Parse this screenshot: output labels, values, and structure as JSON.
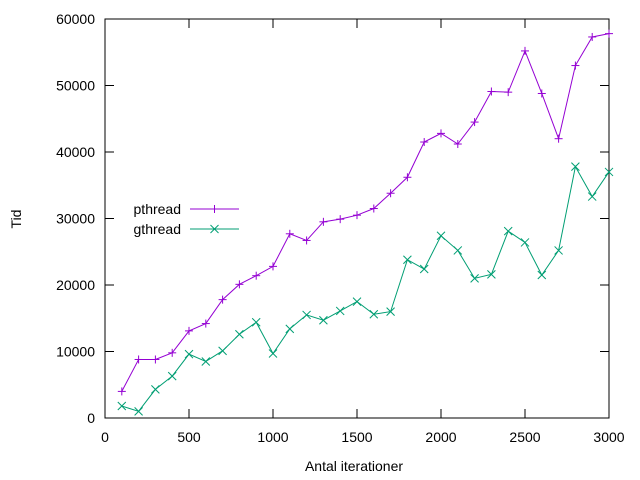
{
  "chart_data": {
    "type": "line",
    "title": "",
    "xlabel": "Antal iterationer",
    "ylabel": "Tid",
    "xlim": [
      0,
      3000
    ],
    "ylim": [
      0,
      60000
    ],
    "xticks": [
      0,
      500,
      1000,
      1500,
      2000,
      2500,
      3000
    ],
    "yticks": [
      0,
      10000,
      20000,
      30000,
      40000,
      50000,
      60000
    ],
    "grid": false,
    "legend_position": "left",
    "x": [
      100,
      200,
      300,
      400,
      500,
      600,
      700,
      800,
      900,
      1000,
      1100,
      1200,
      1300,
      1400,
      1500,
      1600,
      1700,
      1800,
      1900,
      2000,
      2100,
      2200,
      2300,
      2400,
      2500,
      2600,
      2700,
      2800,
      2900,
      3000
    ],
    "series": [
      {
        "name": "pthread",
        "color": "#9400d3",
        "marker": "plus",
        "values": [
          4000,
          8800,
          8800,
          9800,
          13100,
          14200,
          17800,
          20100,
          21400,
          22800,
          27700,
          26700,
          29500,
          29900,
          30500,
          31500,
          33800,
          36200,
          41500,
          42800,
          41200,
          44500,
          49100,
          49000,
          55200,
          48800,
          42000,
          53000,
          57300,
          57800
        ]
      },
      {
        "name": "gthread",
        "color": "#009e73",
        "marker": "cross",
        "values": [
          1800,
          1000,
          4300,
          6300,
          9600,
          8500,
          10100,
          12600,
          14400,
          9700,
          13400,
          15500,
          14700,
          16100,
          17500,
          15600,
          16000,
          23800,
          22400,
          27400,
          25200,
          21000,
          21600,
          28100,
          26400,
          21500,
          25200,
          37800,
          33300,
          37000
        ]
      }
    ]
  }
}
